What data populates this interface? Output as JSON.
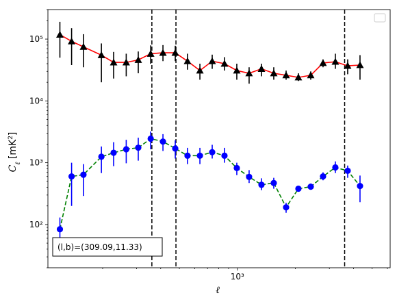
{
  "chart_data": {
    "type": "scatter",
    "title": "",
    "xlabel": "ℓ",
    "ylabel": "C_ℓ  [mK²]",
    "xscale": "log",
    "yscale": "log",
    "xlim": [
      104,
      6200
    ],
    "ylim": [
      20,
      300000
    ],
    "x_ticks": [
      {
        "value": 1000,
        "label": "10³"
      }
    ],
    "y_ticks": [
      {
        "value": 100,
        "label": "10²"
      },
      {
        "value": 1000,
        "label": "10³"
      },
      {
        "value": 10000,
        "label": "10⁴"
      },
      {
        "value": 100000,
        "label": "10⁵"
      }
    ],
    "grid": false,
    "legend": {
      "position": "top-right",
      "entries": []
    },
    "annotation": "(l,b)=(309.09,11.33)",
    "vlines": [
      360,
      480,
      3600
    ],
    "colors": {
      "series1_line": "#ff0000",
      "series1_marker": "#000000",
      "series2_line": "#008000",
      "series2_marker": "#0000ff"
    },
    "series": [
      {
        "marker": "triangle",
        "linestyle": "solid",
        "points": [
          {
            "x": 120,
            "y": 118000,
            "lo": 50000,
            "hi": 190000
          },
          {
            "x": 138,
            "y": 92000,
            "lo": 38000,
            "hi": 150000
          },
          {
            "x": 159,
            "y": 75000,
            "lo": 35000,
            "hi": 120000
          },
          {
            "x": 197,
            "y": 55000,
            "lo": 20000,
            "hi": 85000
          },
          {
            "x": 228,
            "y": 42000,
            "lo": 23000,
            "hi": 62000
          },
          {
            "x": 265,
            "y": 42000,
            "lo": 25000,
            "hi": 58000
          },
          {
            "x": 306,
            "y": 46000,
            "lo": 28000,
            "hi": 63000
          },
          {
            "x": 355,
            "y": 58000,
            "lo": 40000,
            "hi": 79000
          },
          {
            "x": 411,
            "y": 60000,
            "lo": 44000,
            "hi": 80000
          },
          {
            "x": 476,
            "y": 60000,
            "lo": 44000,
            "hi": 78000
          },
          {
            "x": 551,
            "y": 44000,
            "lo": 32000,
            "hi": 58000
          },
          {
            "x": 639,
            "y": 31000,
            "lo": 22000,
            "hi": 40000
          },
          {
            "x": 740,
            "y": 44000,
            "lo": 33000,
            "hi": 56000
          },
          {
            "x": 857,
            "y": 40000,
            "lo": 31000,
            "hi": 51000
          },
          {
            "x": 993,
            "y": 31000,
            "lo": 22000,
            "hi": 40000
          },
          {
            "x": 1150,
            "y": 28000,
            "lo": 19000,
            "hi": 35000
          },
          {
            "x": 1333,
            "y": 33000,
            "lo": 25000,
            "hi": 40000
          },
          {
            "x": 1544,
            "y": 28000,
            "lo": 22000,
            "hi": 35000
          },
          {
            "x": 1789,
            "y": 26000,
            "lo": 22000,
            "hi": 31000
          },
          {
            "x": 2072,
            "y": 24000,
            "lo": 21000,
            "hi": 28000
          },
          {
            "x": 2401,
            "y": 26000,
            "lo": 22000,
            "hi": 30000
          },
          {
            "x": 2781,
            "y": 41000,
            "lo": 35000,
            "hi": 47000
          },
          {
            "x": 3222,
            "y": 43000,
            "lo": 33000,
            "hi": 58000
          },
          {
            "x": 3733,
            "y": 37000,
            "lo": 27000,
            "hi": 47000
          },
          {
            "x": 4325,
            "y": 38000,
            "lo": 22000,
            "hi": 55000
          }
        ]
      },
      {
        "marker": "circle",
        "linestyle": "dashed",
        "points": [
          {
            "x": 120,
            "y": 84,
            "lo": 50,
            "hi": 130
          },
          {
            "x": 138,
            "y": 600,
            "lo": 200,
            "hi": 1000
          },
          {
            "x": 159,
            "y": 640,
            "lo": 290,
            "hi": 950
          },
          {
            "x": 197,
            "y": 1250,
            "lo": 680,
            "hi": 1830
          },
          {
            "x": 228,
            "y": 1450,
            "lo": 880,
            "hi": 2150
          },
          {
            "x": 265,
            "y": 1650,
            "lo": 980,
            "hi": 2350
          },
          {
            "x": 306,
            "y": 1750,
            "lo": 1080,
            "hi": 2540
          },
          {
            "x": 355,
            "y": 2450,
            "lo": 1650,
            "hi": 3200
          },
          {
            "x": 411,
            "y": 2200,
            "lo": 1550,
            "hi": 2900
          },
          {
            "x": 476,
            "y": 1700,
            "lo": 1170,
            "hi": 2300
          },
          {
            "x": 551,
            "y": 1300,
            "lo": 950,
            "hi": 1740
          },
          {
            "x": 639,
            "y": 1300,
            "lo": 950,
            "hi": 1740
          },
          {
            "x": 740,
            "y": 1480,
            "lo": 1170,
            "hi": 1950
          },
          {
            "x": 857,
            "y": 1300,
            "lo": 1000,
            "hi": 1740
          },
          {
            "x": 993,
            "y": 820,
            "lo": 630,
            "hi": 1000
          },
          {
            "x": 1150,
            "y": 590,
            "lo": 470,
            "hi": 760
          },
          {
            "x": 1333,
            "y": 440,
            "lo": 360,
            "hi": 560
          },
          {
            "x": 1544,
            "y": 470,
            "lo": 380,
            "hi": 570
          },
          {
            "x": 1789,
            "y": 190,
            "lo": 155,
            "hi": 225
          },
          {
            "x": 2072,
            "y": 380,
            "lo": 350,
            "hi": 420
          },
          {
            "x": 2401,
            "y": 410,
            "lo": 365,
            "hi": 460
          },
          {
            "x": 2781,
            "y": 600,
            "lo": 520,
            "hi": 700
          },
          {
            "x": 3222,
            "y": 840,
            "lo": 680,
            "hi": 1050
          },
          {
            "x": 3733,
            "y": 740,
            "lo": 570,
            "hi": 900
          },
          {
            "x": 4325,
            "y": 420,
            "lo": 230,
            "hi": 620
          }
        ]
      }
    ]
  }
}
